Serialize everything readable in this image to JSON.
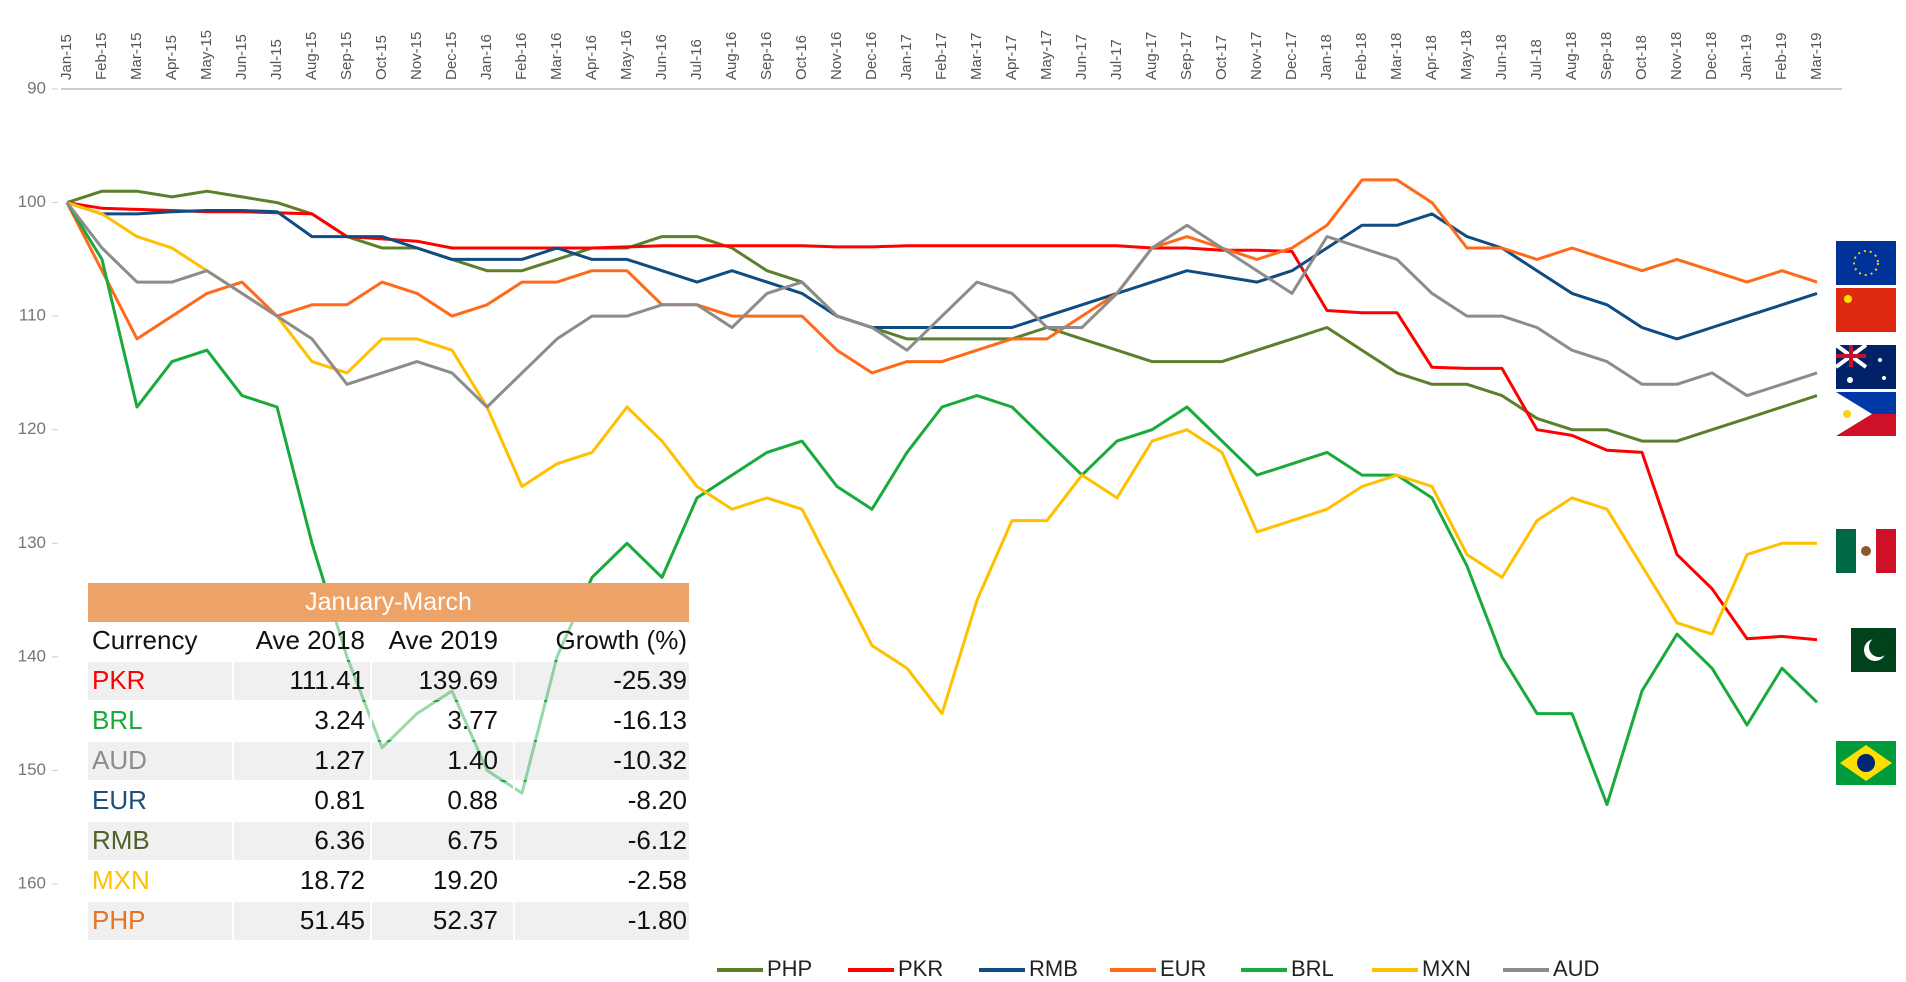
{
  "chart_data": {
    "type": "line",
    "categories": [
      "Jan-15",
      "Feb-15",
      "Mar-15",
      "Apr-15",
      "May-15",
      "Jun-15",
      "Jul-15",
      "Aug-15",
      "Sep-15",
      "Oct-15",
      "Nov-15",
      "Dec-15",
      "Jan-16",
      "Feb-16",
      "Mar-16",
      "Apr-16",
      "May-16",
      "Jun-16",
      "Jul-16",
      "Aug-16",
      "Sep-16",
      "Oct-16",
      "Nov-16",
      "Dec-16",
      "Jan-17",
      "Feb-17",
      "Mar-17",
      "Apr-17",
      "May-17",
      "Jun-17",
      "Jul-17",
      "Aug-17",
      "Sep-17",
      "Oct-17",
      "Nov-17",
      "Dec-17",
      "Jan-18",
      "Feb-18",
      "Mar-18",
      "Apr-18",
      "May-18",
      "Jun-18",
      "Jul-18",
      "Aug-18",
      "Sep-18",
      "Oct-18",
      "Nov-18",
      "Dec-18",
      "Jan-19",
      "Feb-19",
      "Mar-19"
    ],
    "series": [
      {
        "name": "PHP",
        "color": "#5b7f2b",
        "values": [
          100,
          99,
          99,
          99.5,
          99,
          99.5,
          100,
          101,
          103,
          104,
          104,
          105,
          106,
          106,
          105,
          104,
          104,
          103,
          103,
          104,
          106,
          107,
          110,
          111,
          112,
          112,
          112,
          112,
          111,
          112,
          113,
          114,
          114,
          114,
          113,
          112,
          111,
          113,
          115,
          116,
          116,
          117,
          119,
          120,
          120,
          121,
          121,
          120,
          119,
          118,
          117
        ]
      },
      {
        "name": "PKR",
        "color": "#ff0000",
        "values": [
          100,
          100.5,
          100.6,
          100.7,
          100.8,
          100.8,
          100.9,
          101,
          103,
          103.2,
          103.4,
          104,
          104,
          104,
          104,
          104,
          103.9,
          103.8,
          103.8,
          103.8,
          103.8,
          103.8,
          103.9,
          103.9,
          103.8,
          103.8,
          103.8,
          103.8,
          103.8,
          103.8,
          103.8,
          104,
          104,
          104.2,
          104.2,
          104.3,
          109.5,
          109.7,
          109.7,
          114.5,
          114.6,
          114.6,
          120,
          120.5,
          121.8,
          122,
          131,
          134,
          138.4,
          138.2,
          138.5
        ]
      },
      {
        "name": "RMB",
        "color": "#0f4c81",
        "values": [
          100,
          101,
          101,
          100.8,
          100.7,
          100.7,
          100.8,
          103,
          103,
          103,
          104,
          105,
          105,
          105,
          104,
          105,
          105,
          106,
          107,
          106,
          107,
          108,
          110,
          111,
          111,
          111,
          111,
          111,
          110,
          109,
          108,
          107,
          106,
          106.5,
          107,
          106,
          104,
          102,
          102,
          101,
          103,
          104,
          106,
          108,
          109,
          111,
          112,
          111,
          110,
          109,
          108
        ]
      },
      {
        "name": "EUR",
        "color": "#ff6a1a",
        "values": [
          100,
          106,
          112,
          110,
          108,
          107,
          110,
          109,
          109,
          107,
          108,
          110,
          109,
          107,
          107,
          106,
          106,
          109,
          109,
          110,
          110,
          110,
          113,
          115,
          114,
          114,
          113,
          112,
          112,
          110,
          108,
          104,
          103,
          104,
          105,
          104,
          102,
          98,
          98,
          100,
          104,
          104,
          105,
          104,
          105,
          106,
          105,
          106,
          107,
          106,
          107
        ]
      },
      {
        "name": "BRL",
        "color": "#1aaa3c",
        "values": [
          100,
          105,
          118,
          114,
          113,
          117,
          118,
          130,
          140,
          148,
          145,
          143,
          150,
          152,
          140,
          133,
          130,
          133,
          126,
          124,
          122,
          121,
          125,
          127,
          122,
          118,
          117,
          118,
          121,
          124,
          121,
          120,
          118,
          121,
          124,
          123,
          122,
          124,
          124,
          126,
          132,
          140,
          145,
          145,
          153,
          143,
          138,
          141,
          146,
          141,
          144
        ]
      },
      {
        "name": "MXN",
        "color": "#ffc000",
        "values": [
          100,
          101,
          103,
          104,
          106,
          108,
          110,
          114,
          115,
          112,
          112,
          113,
          118,
          125,
          123,
          122,
          118,
          121,
          125,
          127,
          126,
          127,
          133,
          139,
          141,
          145,
          135,
          128,
          128,
          124,
          126,
          121,
          120,
          122,
          129,
          128,
          127,
          125,
          124,
          125,
          131,
          133,
          128,
          126,
          127,
          132,
          137,
          138,
          131,
          130,
          130
        ]
      },
      {
        "name": "AUD",
        "color": "#8c8c8c",
        "values": [
          100,
          104,
          107,
          107,
          106,
          108,
          110,
          112,
          116,
          115,
          114,
          115,
          118,
          115,
          112,
          110,
          110,
          109,
          109,
          111,
          108,
          107,
          110,
          111,
          113,
          110,
          107,
          108,
          111,
          111,
          108,
          104,
          102,
          104,
          106,
          108,
          103,
          104,
          105,
          108,
          110,
          110,
          111,
          113,
          114,
          116,
          116,
          115,
          117,
          116,
          115
        ]
      }
    ],
    "ylim": [
      90,
      160
    ],
    "yticks": [
      90,
      100,
      110,
      120,
      130,
      140,
      150,
      160
    ],
    "y_reversed": true,
    "grid": false,
    "legend": "bottom"
  },
  "table": {
    "title": "January-March",
    "header": [
      "Currency",
      "Ave 2018",
      "Ave 2019",
      "Growth (%)"
    ],
    "rows": [
      [
        "PKR",
        "111.41",
        "139.69",
        "-25.39"
      ],
      [
        "BRL",
        "3.24",
        "3.77",
        "-16.13"
      ],
      [
        "AUD",
        "1.27",
        "1.40",
        "-10.32"
      ],
      [
        "EUR",
        "0.81",
        "0.88",
        "-8.20"
      ],
      [
        "RMB",
        "6.36",
        "6.75",
        "-6.12"
      ],
      [
        "MXN",
        "18.72",
        "19.20",
        "-2.58"
      ],
      [
        "PHP",
        "51.45",
        "52.37",
        "-1.80"
      ]
    ],
    "row_colors": [
      "#ff0000",
      "#1aaa3c",
      "#8c8c8c",
      "#1f4e79",
      "#4f6228",
      "#ffc000",
      "#e97025"
    ]
  }
}
